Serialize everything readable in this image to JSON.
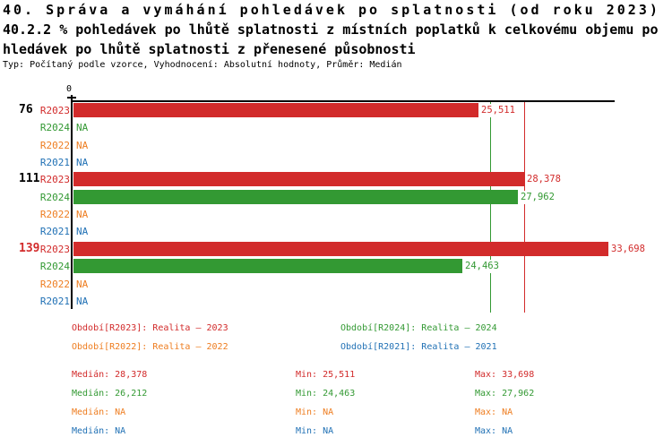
{
  "title": {
    "line1": "40. Správa a vymáhání pohledávek po splatnosti (od roku 2023)",
    "line2": "40.2.2 % pohledávek po lhůtě splatnosti z místních poplatků k celkovému objemu po",
    "line3": "hledávek po lhůtě splatnosti z přenesené působnosti",
    "meta": "Typ: Počítaný podle vzorce, Vyhodnocení: Absolutní hodnoty, Průměr: Medián"
  },
  "colors": {
    "R2023": "#d22b2b",
    "R2024": "#339933",
    "R2022": "#ee7d20",
    "R2021": "#2171b5",
    "axis": "#000000",
    "group_label": "#000000",
    "group_label_highlight": "#d22b2b"
  },
  "chart_data": {
    "type": "bar",
    "orientation": "horizontal",
    "x_axis": {
      "zero_tick": "0"
    },
    "series_order": [
      "R2023",
      "R2024",
      "R2022",
      "R2021"
    ],
    "groups": [
      {
        "label": "76",
        "highlight": false,
        "values": {
          "R2023": 25511,
          "R2024": null,
          "R2022": null,
          "R2021": null
        },
        "displays": {
          "R2023": "25,511",
          "R2024": "NA",
          "R2022": "NA",
          "R2021": "NA"
        }
      },
      {
        "label": "111",
        "highlight": false,
        "values": {
          "R2023": 28378,
          "R2024": 27962,
          "R2022": null,
          "R2021": null
        },
        "displays": {
          "R2023": "28,378",
          "R2024": "27,962",
          "R2022": "NA",
          "R2021": "NA"
        }
      },
      {
        "label": "139",
        "highlight": true,
        "values": {
          "R2023": 33698,
          "R2024": 24463,
          "R2022": null,
          "R2021": null
        },
        "displays": {
          "R2023": "33,698",
          "R2024": "24,463",
          "R2022": "NA",
          "R2021": "NA"
        }
      }
    ],
    "reference_lines": [
      {
        "series": "R2024",
        "value": 26212
      },
      {
        "series": "R2023",
        "value": 28378
      }
    ]
  },
  "legend": {
    "items": [
      {
        "series": "R2023",
        "label": "Období[R2023]: Realita – 2023"
      },
      {
        "series": "R2024",
        "label": "Období[R2024]: Realita – 2024"
      },
      {
        "series": "R2022",
        "label": "Období[R2022]: Realita – 2022"
      },
      {
        "series": "R2021",
        "label": "Období[R2021]: Realita – 2021"
      }
    ]
  },
  "stats": {
    "rows": [
      {
        "series": "R2023",
        "median": "Medián: 28,378",
        "min": "Min: 25,511",
        "max": "Max: 33,698"
      },
      {
        "series": "R2024",
        "median": "Medián: 26,212",
        "min": "Min: 24,463",
        "max": "Max: 27,962"
      },
      {
        "series": "R2022",
        "median": "Medián: NA",
        "min": "Min: NA",
        "max": "Max: NA"
      },
      {
        "series": "R2021",
        "median": "Medián: NA",
        "min": "Min: NA",
        "max": "Max: NA"
      }
    ]
  }
}
